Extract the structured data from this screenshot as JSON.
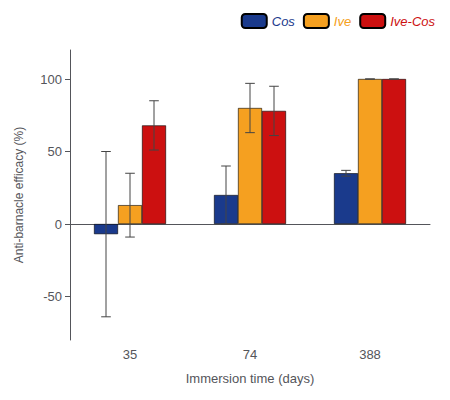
{
  "chart_data": {
    "type": "bar",
    "xlabel": "Immersion time (days)",
    "ylabel": "Anti-barnacle efficacy (%)",
    "categories": [
      "35",
      "74",
      "388"
    ],
    "series": [
      {
        "name": "Cos",
        "color": "#1a3a8c",
        "values": [
          -7,
          20,
          35
        ],
        "errors": [
          57,
          20,
          2
        ]
      },
      {
        "name": "Ive",
        "color": "#f5a020",
        "values": [
          13,
          80,
          100
        ],
        "errors": [
          22,
          17,
          0
        ]
      },
      {
        "name": "Ive-Cos",
        "color": "#cc1010",
        "values": [
          68,
          78,
          100
        ],
        "errors": [
          17,
          17,
          0
        ]
      }
    ],
    "ylim": [
      -80,
      120
    ],
    "yticks": [
      -50,
      0,
      50,
      100
    ],
    "grid": false,
    "legend": "upper right"
  }
}
